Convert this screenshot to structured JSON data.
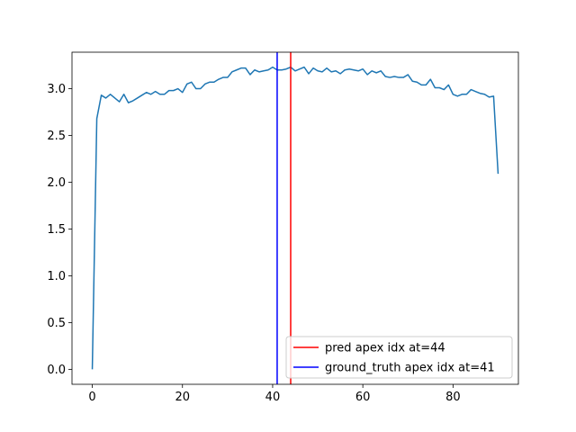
{
  "chart_data": {
    "type": "line",
    "title": "",
    "xlabel": "",
    "ylabel": "",
    "xlim": [
      -4.5,
      94.5
    ],
    "ylim": [
      -0.16,
      3.39
    ],
    "x_ticks": [
      0,
      20,
      40,
      60,
      80
    ],
    "y_ticks": [
      0.0,
      0.5,
      1.0,
      1.5,
      2.0,
      2.5,
      3.0
    ],
    "y_tick_labels": [
      "0.0",
      "0.5",
      "1.0",
      "1.5",
      "2.0",
      "2.5",
      "3.0"
    ],
    "grid": false,
    "legend_position": "lower-right",
    "series": [
      {
        "color": "#1f77b4",
        "y": [
          0.0,
          2.68,
          2.93,
          2.9,
          2.94,
          2.9,
          2.86,
          2.94,
          2.85,
          2.87,
          2.9,
          2.93,
          2.96,
          2.94,
          2.97,
          2.94,
          2.94,
          2.98,
          2.98,
          3.0,
          2.96,
          3.05,
          3.07,
          3.0,
          3.0,
          3.05,
          3.07,
          3.07,
          3.1,
          3.12,
          3.12,
          3.18,
          3.2,
          3.22,
          3.22,
          3.15,
          3.2,
          3.18,
          3.19,
          3.2,
          3.23,
          3.2,
          3.2,
          3.21,
          3.23,
          3.19,
          3.21,
          3.23,
          3.16,
          3.22,
          3.19,
          3.18,
          3.22,
          3.18,
          3.19,
          3.16,
          3.2,
          3.21,
          3.2,
          3.19,
          3.21,
          3.15,
          3.19,
          3.17,
          3.19,
          3.13,
          3.12,
          3.13,
          3.12,
          3.12,
          3.15,
          3.08,
          3.07,
          3.04,
          3.04,
          3.1,
          3.01,
          3.01,
          2.99,
          3.04,
          2.94,
          2.92,
          2.94,
          2.94,
          2.99,
          2.97,
          2.95,
          2.94,
          2.91,
          2.92,
          2.09
        ]
      }
    ],
    "vlines": [
      {
        "label": "pred apex idx at=44",
        "x": 44,
        "color": "#ff0000"
      },
      {
        "label": "ground_truth apex idx at=41",
        "x": 41,
        "color": "#0000ff"
      }
    ]
  }
}
